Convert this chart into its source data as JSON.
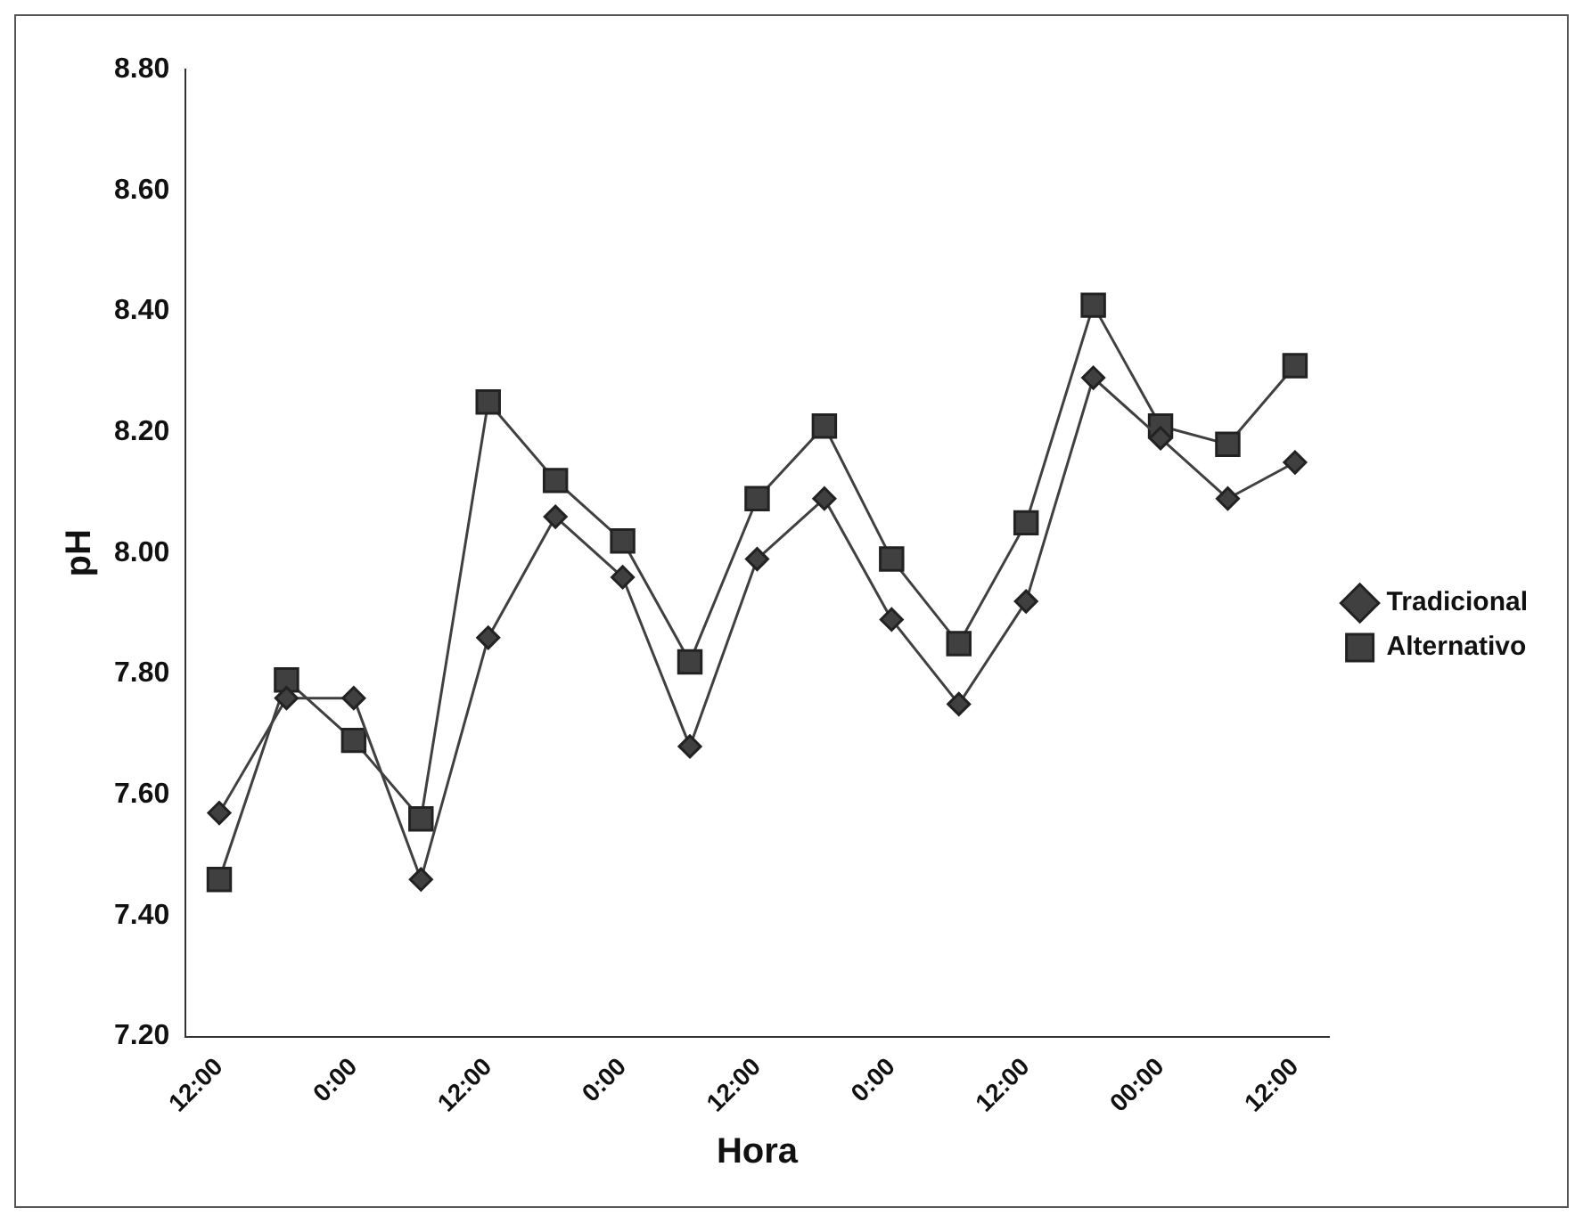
{
  "chart_data": {
    "type": "line",
    "xlabel": "Hora",
    "ylabel": "pH",
    "categories": [
      "12:00",
      null,
      "0:00",
      null,
      "12:00",
      null,
      "0:00",
      null,
      "12:00",
      null,
      "0:00",
      null,
      "12:00",
      null,
      "00:00",
      null,
      "12:00"
    ],
    "series": [
      {
        "name": "Tradicional",
        "color": "#404040",
        "marker": "diamond",
        "values": [
          7.57,
          7.76,
          7.76,
          7.46,
          7.86,
          8.06,
          7.96,
          7.68,
          7.99,
          8.09,
          7.89,
          7.75,
          7.92,
          8.29,
          8.19,
          8.09,
          8.15
        ]
      },
      {
        "name": "Alternativo",
        "color": "#404040",
        "marker": "square",
        "values": [
          7.46,
          7.79,
          7.69,
          7.56,
          8.25,
          8.12,
          8.02,
          7.82,
          8.09,
          8.21,
          7.99,
          7.85,
          8.05,
          8.41,
          8.21,
          8.18,
          8.31
        ]
      }
    ],
    "ylim": [
      7.2,
      8.8
    ],
    "yticks": [
      {
        "value": 7.2,
        "label": "7.20"
      },
      {
        "value": 7.4,
        "label": "7.40"
      },
      {
        "value": 7.6,
        "label": "7.60"
      },
      {
        "value": 7.8,
        "label": "7.80"
      },
      {
        "value": 8.0,
        "label": "8.00"
      },
      {
        "value": 8.2,
        "label": "8.20"
      },
      {
        "value": 8.4,
        "label": "8.40"
      },
      {
        "value": 8.6,
        "label": "8.60"
      },
      {
        "value": 8.8,
        "label": "8.80"
      }
    ],
    "grid": false,
    "legend": "right",
    "line_style": "solid"
  }
}
